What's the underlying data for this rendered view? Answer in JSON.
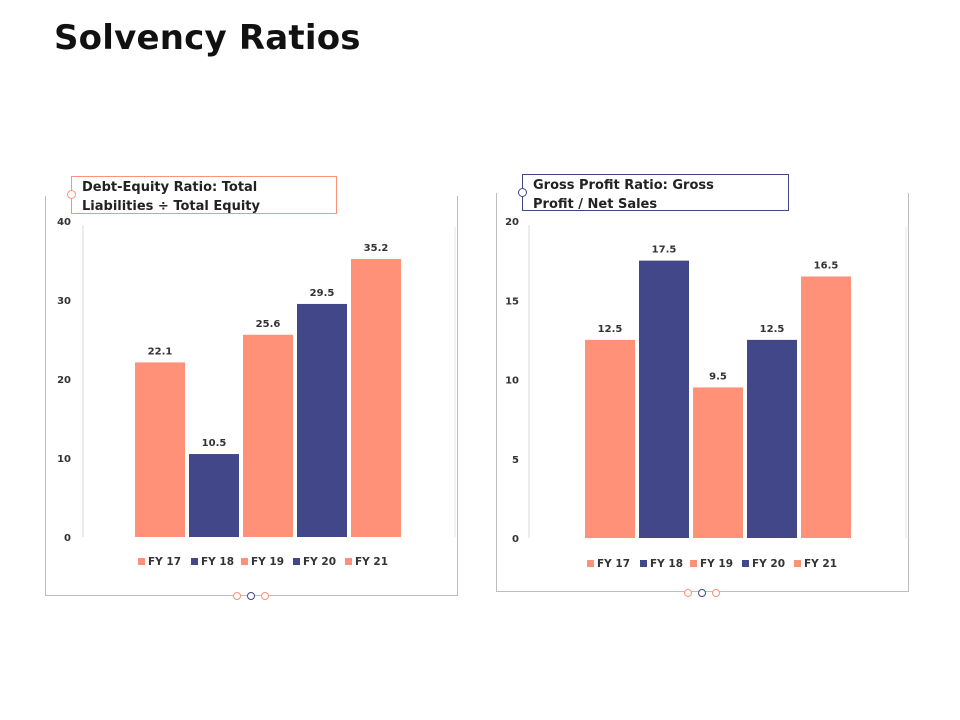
{
  "page": {
    "title": "Solvency Ratios"
  },
  "colors": {
    "salmon": "#FF9178",
    "navy": "#414788",
    "axis": "#d9d9d9",
    "frame": "#bdbdbd"
  },
  "chart_data": [
    {
      "type": "bar",
      "title": "Debt-Equity Ratio: Total Liabilities ÷ Total Equity",
      "title_lines": [
        "Debt-Equity Ratio: Total",
        "Liabilities ÷ Total Equity"
      ],
      "categories": [
        "FY 17",
        "FY 18",
        "FY 19",
        "FY 20",
        "FY 21"
      ],
      "values": [
        22.1,
        10.5,
        25.6,
        29.5,
        35.2
      ],
      "value_labels": [
        "22.1",
        "10.5",
        "25.6",
        "29.5",
        "35.2"
      ],
      "bar_colors": [
        "#FF9178",
        "#414788",
        "#FF9178",
        "#414788",
        "#FF9178"
      ],
      "ylim": [
        0,
        40
      ],
      "yticks": [
        "0",
        "10",
        "20",
        "30",
        "40"
      ],
      "ytick_values": [
        0,
        10,
        20,
        30,
        40
      ],
      "legend_position": "bottom",
      "grid": false,
      "accent": "#FF9178"
    },
    {
      "type": "bar",
      "title": "Gross Profit Ratio: Gross Profit / Net Sales",
      "title_lines": [
        "Gross Profit Ratio: Gross",
        "Profit / Net Sales"
      ],
      "categories": [
        "FY 17",
        "FY 18",
        "FY 19",
        "FY 20",
        "FY 21"
      ],
      "values": [
        12.5,
        17.5,
        9.5,
        12.5,
        16.5
      ],
      "value_labels": [
        "12.5",
        "17.5",
        "9.5",
        "12.5",
        "16.5"
      ],
      "bar_colors": [
        "#FF9178",
        "#414788",
        "#FF9178",
        "#414788",
        "#FF9178"
      ],
      "ylim": [
        0,
        20
      ],
      "yticks": [
        "0",
        "5",
        "10",
        "15",
        "20"
      ],
      "ytick_values": [
        0,
        5,
        10,
        15,
        20
      ],
      "legend_position": "bottom",
      "grid": false,
      "accent": "#414788"
    }
  ],
  "pager_dots": [
    {
      "colors": [
        "#FF9178",
        "#414788",
        "#FF9178"
      ]
    },
    {
      "colors": [
        "#FF9178",
        "#414788",
        "#FF9178"
      ]
    }
  ]
}
